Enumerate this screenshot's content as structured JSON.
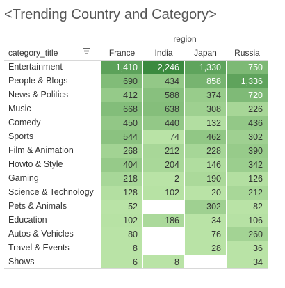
{
  "title": "<Trending Country and Category>",
  "header": {
    "column_group_label": "region",
    "row_header": "category_title",
    "sort_icon": "sort-icon"
  },
  "colors": {
    "scale_low": "#b9e3a6",
    "scale_high": "#3b8a3f",
    "text_dark": "#333333",
    "text_light": "#ffffff",
    "empty": "#ffffff"
  },
  "chart_data": {
    "type": "heatmap",
    "title": "<Trending Country and Category>",
    "xlabel": "region",
    "ylabel": "category_title",
    "columns": [
      "France",
      "India",
      "Japan",
      "Russia"
    ],
    "rows": [
      {
        "label": "Entertainment",
        "values": [
          1410,
          2246,
          1330,
          750
        ],
        "display": [
          "1,410",
          "2,246",
          "1,330",
          "750"
        ]
      },
      {
        "label": "People & Blogs",
        "values": [
          690,
          434,
          858,
          1336
        ],
        "display": [
          "690",
          "434",
          "858",
          "1,336"
        ]
      },
      {
        "label": "News & Politics",
        "values": [
          412,
          588,
          374,
          720
        ],
        "display": [
          "412",
          "588",
          "374",
          "720"
        ]
      },
      {
        "label": "Music",
        "values": [
          668,
          638,
          308,
          226
        ],
        "display": [
          "668",
          "638",
          "308",
          "226"
        ]
      },
      {
        "label": "Comedy",
        "values": [
          450,
          440,
          132,
          436
        ],
        "display": [
          "450",
          "440",
          "132",
          "436"
        ]
      },
      {
        "label": "Sports",
        "values": [
          544,
          74,
          462,
          302
        ],
        "display": [
          "544",
          "74",
          "462",
          "302"
        ]
      },
      {
        "label": "Film & Animation",
        "values": [
          268,
          212,
          228,
          390
        ],
        "display": [
          "268",
          "212",
          "228",
          "390"
        ]
      },
      {
        "label": "Howto & Style",
        "values": [
          404,
          204,
          146,
          342
        ],
        "display": [
          "404",
          "204",
          "146",
          "342"
        ]
      },
      {
        "label": "Gaming",
        "values": [
          218,
          2,
          190,
          126
        ],
        "display": [
          "218",
          "2",
          "190",
          "126"
        ]
      },
      {
        "label": "Science & Technology",
        "values": [
          128,
          102,
          20,
          212
        ],
        "display": [
          "128",
          "102",
          "20",
          "212"
        ]
      },
      {
        "label": "Pets & Animals",
        "values": [
          52,
          null,
          302,
          82
        ],
        "display": [
          "52",
          "",
          "302",
          "82"
        ]
      },
      {
        "label": "Education",
        "values": [
          102,
          186,
          34,
          106
        ],
        "display": [
          "102",
          "186",
          "34",
          "106"
        ]
      },
      {
        "label": "Autos & Vehicles",
        "values": [
          80,
          null,
          76,
          260
        ],
        "display": [
          "80",
          "",
          "76",
          "260"
        ]
      },
      {
        "label": "Travel & Events",
        "values": [
          8,
          null,
          28,
          36
        ],
        "display": [
          "8",
          "",
          "28",
          "36"
        ]
      },
      {
        "label": "Shows",
        "values": [
          6,
          8,
          null,
          34
        ],
        "display": [
          "6",
          "8",
          "",
          "34"
        ]
      }
    ]
  }
}
